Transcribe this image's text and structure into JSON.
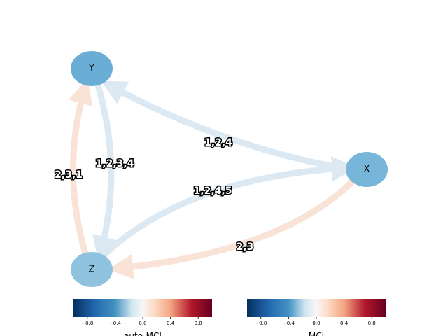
{
  "nodes": [
    {
      "label": "Y"
    },
    {
      "label": "X"
    },
    {
      "label": "Z"
    }
  ],
  "edges": [
    {
      "label": "1,2,4"
    },
    {
      "label": "1,2,3,4"
    },
    {
      "label": "2,3,1"
    },
    {
      "label": "1,2,4,5"
    },
    {
      "label": "2,3"
    }
  ],
  "colorbars": [
    {
      "label": "auto-MCI",
      "ticks": [
        {
          "value": -0.8,
          "label": "−0.8"
        },
        {
          "value": -0.4,
          "label": "−0.4"
        },
        {
          "value": 0.0,
          "label": "0.0"
        },
        {
          "value": 0.4,
          "label": "0.4"
        },
        {
          "value": 0.8,
          "label": "0.8"
        }
      ]
    },
    {
      "label": "MCI",
      "ticks": [
        {
          "value": -0.8,
          "label": "−0.8"
        },
        {
          "value": -0.4,
          "label": "−0.4"
        },
        {
          "value": 0.0,
          "label": "0.0"
        },
        {
          "value": 0.4,
          "label": "0.4"
        },
        {
          "value": 0.8,
          "label": "0.8"
        }
      ]
    }
  ]
}
